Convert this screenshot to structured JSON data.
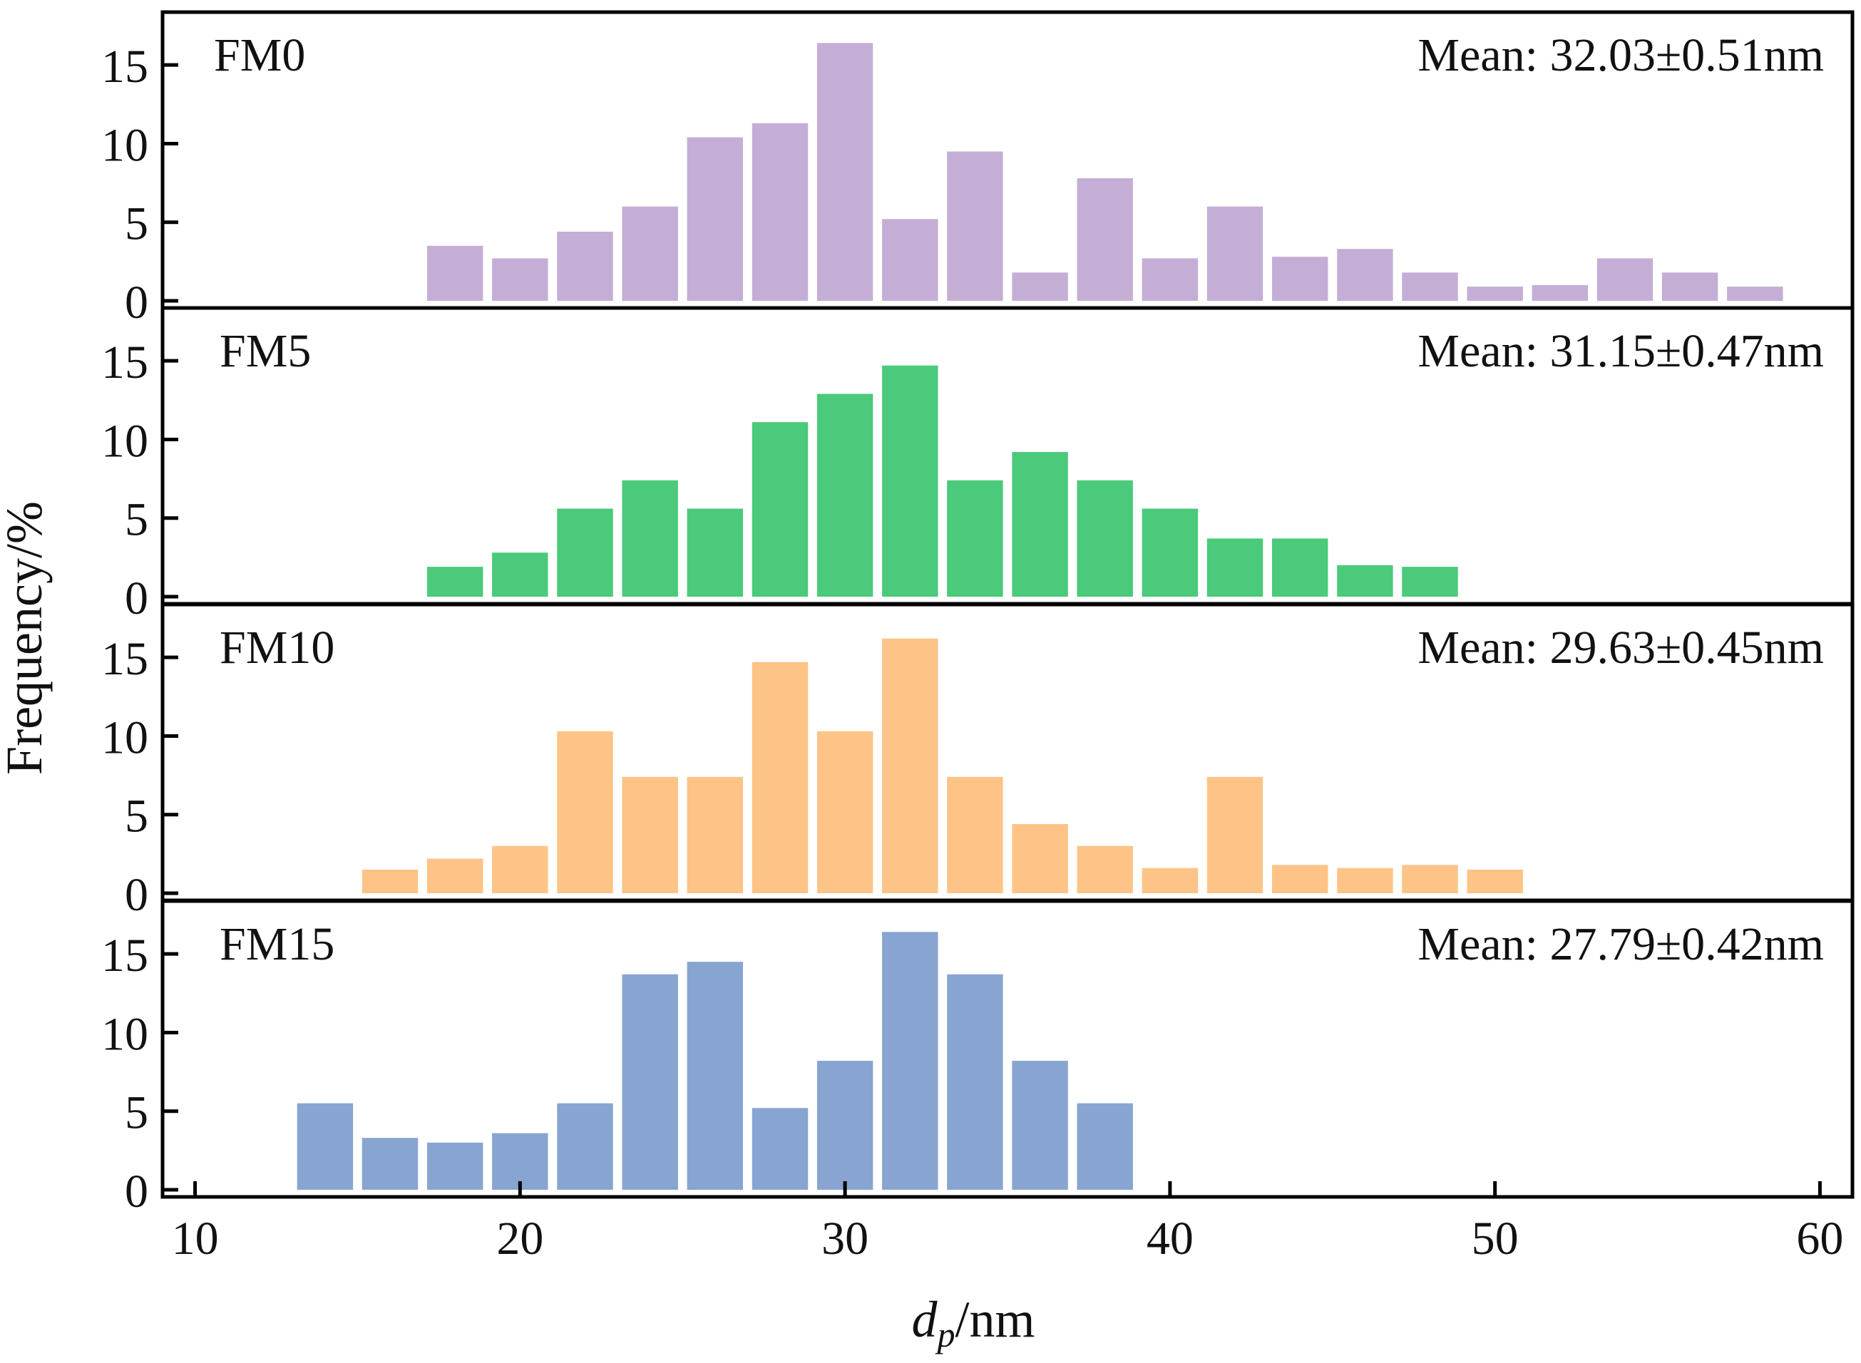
{
  "chart_data": {
    "type": "bar",
    "shared_x_axis": true,
    "xlabel": {
      "symbol": "d",
      "subscript": "p",
      "unit": "/nm"
    },
    "ylabel": "Frequency/%",
    "xlim": [
      9,
      61
    ],
    "x_ticks": [
      10,
      20,
      30,
      40,
      50,
      60
    ],
    "ylim": [
      0,
      18
    ],
    "y_ticks": [
      0,
      5,
      10,
      15
    ],
    "bin_width": 2,
    "panels": [
      {
        "name": "FM0",
        "label": "FM0",
        "mean_text": "Mean: 32.03±0.51nm",
        "color": "#C4AED6",
        "bin_centers": [
          18,
          20,
          22,
          24,
          26,
          28,
          30,
          32,
          34,
          36,
          38,
          40,
          42,
          44,
          46,
          48,
          50,
          52,
          54,
          56,
          58
        ],
        "values": [
          3.5,
          2.7,
          4.4,
          6.0,
          10.4,
          11.3,
          16.4,
          5.2,
          9.5,
          1.8,
          7.8,
          2.7,
          6.0,
          2.8,
          3.3,
          1.8,
          0.9,
          1.0,
          2.7,
          1.8,
          0.9
        ]
      },
      {
        "name": "FM5",
        "label": "FM5",
        "mean_text": "Mean: 31.15±0.47nm",
        "color": "#4ACA7A",
        "bin_centers": [
          18,
          20,
          22,
          24,
          26,
          28,
          30,
          32,
          34,
          36,
          38,
          40,
          42,
          44,
          46,
          48
        ],
        "values": [
          1.9,
          2.8,
          5.6,
          7.4,
          5.6,
          11.1,
          12.9,
          14.7,
          7.4,
          9.2,
          7.4,
          5.6,
          3.7,
          3.7,
          2.0,
          1.9
        ]
      },
      {
        "name": "FM10",
        "label": "FM10",
        "mean_text": "Mean: 29.63±0.45nm",
        "color": "#FDC387",
        "bin_centers": [
          16,
          18,
          20,
          22,
          24,
          26,
          28,
          30,
          32,
          34,
          36,
          38,
          40,
          42,
          44,
          46,
          48,
          50
        ],
        "values": [
          1.5,
          2.2,
          3.0,
          10.3,
          7.4,
          7.4,
          14.7,
          10.3,
          16.2,
          7.4,
          4.4,
          3.0,
          1.6,
          7.4,
          1.8,
          1.6,
          1.8,
          1.5
        ]
      },
      {
        "name": "FM15",
        "label": "FM15",
        "mean_text": "Mean: 27.79±0.42nm",
        "color": "#88A4D1",
        "bin_centers": [
          14,
          16,
          18,
          20,
          22,
          24,
          26,
          28,
          30,
          32,
          34,
          36,
          38
        ],
        "values": [
          5.5,
          3.3,
          3.0,
          3.6,
          5.5,
          13.7,
          14.5,
          5.2,
          8.2,
          16.4,
          13.7,
          8.2,
          5.5
        ]
      }
    ]
  }
}
